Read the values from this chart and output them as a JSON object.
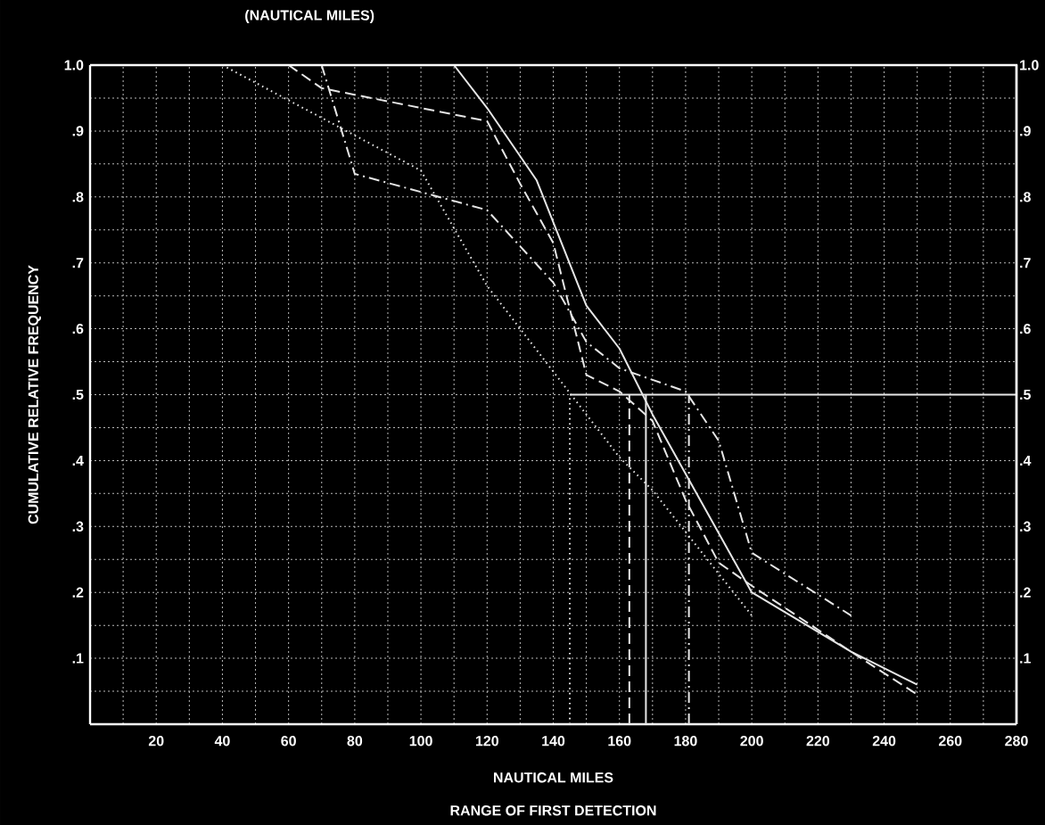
{
  "chart_data": {
    "type": "line",
    "title": "(NAUTICAL MILES)",
    "xlabel": "NAUTICAL MILES",
    "ylabel": "CUMULATIVE RELATIVE FREQUENCY",
    "annotations": [
      "RANGE OF FIRST DETECTION"
    ],
    "xlim": [
      0,
      280
    ],
    "ylim": [
      0,
      1.0
    ],
    "y2lim": [
      0,
      1.0
    ],
    "xticks": [
      {
        "value": 0,
        "label": null
      },
      20,
      40,
      60,
      80,
      100,
      120,
      140,
      160,
      180,
      200,
      220,
      240,
      260,
      280
    ],
    "yticks": [
      {
        "value": 0,
        "label": null
      },
      {
        "value": 0.1,
        "label": ".1"
      },
      {
        "value": 0.2,
        "label": ".2"
      },
      {
        "value": 0.3,
        "label": ".3"
      },
      {
        "value": 0.4,
        "label": ".4"
      },
      {
        "value": 0.5,
        "label": ".5"
      },
      {
        "value": 0.6,
        "label": ".6"
      },
      {
        "value": 0.7,
        "label": ".7"
      },
      {
        "value": 0.8,
        "label": ".8"
      },
      {
        "value": 0.9,
        "label": ".9"
      },
      {
        "value": 1.0,
        "label": "1.0"
      }
    ],
    "y2ticks": [
      {
        "value": 0,
        "label": null
      },
      {
        "value": 0.1,
        "label": ".1"
      },
      {
        "value": 0.2,
        "label": ".2"
      },
      {
        "value": 0.3,
        "label": ".3"
      },
      {
        "value": 0.4,
        "label": ".4"
      },
      {
        "value": 0.5,
        "label": ".5"
      },
      {
        "value": 0.6,
        "label": ".6"
      },
      {
        "value": 0.7,
        "label": ".7"
      },
      {
        "value": 0.8,
        "label": ".8"
      },
      {
        "value": 0.9,
        "label": ".9"
      },
      {
        "value": 1.0,
        "label": "1.0"
      }
    ],
    "grid": true,
    "marker": "none",
    "series": [
      {
        "color": "#e6e6e6",
        "line_style": "solid",
        "x": [
          0,
          110,
          120,
          135,
          150,
          160,
          170,
          180,
          200,
          230,
          250
        ],
        "values": [
          1.0,
          1.0,
          0.935,
          0.825,
          0.635,
          0.57,
          0.47,
          0.38,
          0.2,
          0.11,
          0.06
        ]
      },
      {
        "color": "#e6e6e6",
        "line_style": "dashed",
        "x": [
          60,
          70,
          120,
          130,
          140,
          150,
          160,
          170,
          180,
          190,
          200,
          230,
          250
        ],
        "values": [
          1.0,
          0.965,
          0.915,
          0.82,
          0.73,
          0.53,
          0.505,
          0.46,
          0.34,
          0.245,
          0.21,
          0.11,
          0.045
        ]
      },
      {
        "color": "#e6e6e6",
        "line_style": "dashdot",
        "x": [
          70,
          80,
          120,
          140,
          150,
          160,
          180,
          190,
          200,
          230
        ],
        "values": [
          1.0,
          0.835,
          0.78,
          0.67,
          0.58,
          0.54,
          0.505,
          0.43,
          0.26,
          0.165
        ]
      },
      {
        "color": "#e6e6e6",
        "line_style": "dotted",
        "x": [
          40,
          100,
          120,
          160,
          170,
          200
        ],
        "values": [
          1.0,
          0.84,
          0.665,
          0.405,
          0.355,
          0.165
        ]
      },
      {
        "color": "#e6e6e6",
        "line_style": "solid",
        "x": [
          145,
          280
        ],
        "values": [
          0.5,
          0.5
        ]
      },
      {
        "color": "#e6e6e6",
        "line_style": "dotted",
        "x": [
          145,
          145
        ],
        "values": [
          0,
          0.5
        ]
      },
      {
        "color": "#e6e6e6",
        "line_style": "dashed",
        "x": [
          163,
          163
        ],
        "values": [
          0,
          0.5
        ]
      },
      {
        "color": "#e6e6e6",
        "line_style": "solid",
        "x": [
          168,
          168
        ],
        "values": [
          0,
          0.5
        ]
      },
      {
        "color": "#e6e6e6",
        "line_style": "dashdot",
        "x": [
          181,
          181
        ],
        "values": [
          0,
          0.5
        ]
      }
    ]
  }
}
